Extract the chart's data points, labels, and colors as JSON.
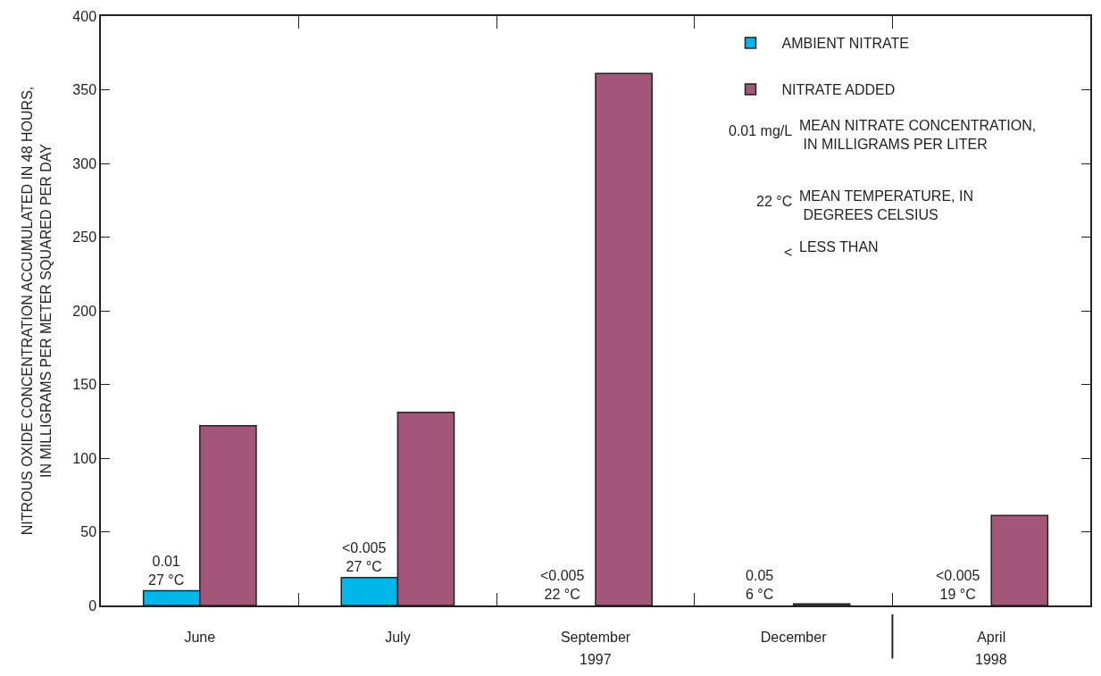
{
  "chart_data": {
    "type": "bar",
    "ylabel": "NITROUS OXIDE CONCENTRATION ACCUMULATED IN 48 HOURS,\nIN MILLIGRAMS PER METER SQUARED PER DAY",
    "categories": [
      "June",
      "July",
      "September",
      "December",
      "April"
    ],
    "series": [
      {
        "name": "AMBIENT NITRATE",
        "color": "#00b7eb",
        "values": [
          10,
          19,
          null,
          null,
          null
        ]
      },
      {
        "name": "NITRATE ADDED",
        "color": "#a35677",
        "values": [
          122,
          131,
          361,
          1,
          61
        ]
      }
    ],
    "ylim": [
      0,
      400
    ],
    "yticks": [
      0,
      50,
      100,
      150,
      200,
      250,
      300,
      350,
      400
    ],
    "grid": false,
    "legend": "top right",
    "annotations": [
      {
        "text": "0.01\n27 °C",
        "x": "June",
        "y": 10
      },
      {
        "text": "<0.005\n27 °C",
        "x": "July",
        "y": 19
      },
      {
        "text": "<0.005\n22 °C",
        "x": "September",
        "y": 0
      },
      {
        "text": "0.05\n6 °C",
        "x": "December",
        "y": 0
      },
      {
        "text": "<0.005\n19 °C",
        "x": "April",
        "y": 0
      },
      "0.01 mg/L",
      "MEAN NITRATE CONCENTRATION,\n IN MILLIGRAMS PER LITER",
      "22 °C",
      "MEAN TEMPERATURE, IN\n DEGREES CELSIUS",
      "<",
      "LESS THAN",
      "1997",
      "1998"
    ]
  }
}
